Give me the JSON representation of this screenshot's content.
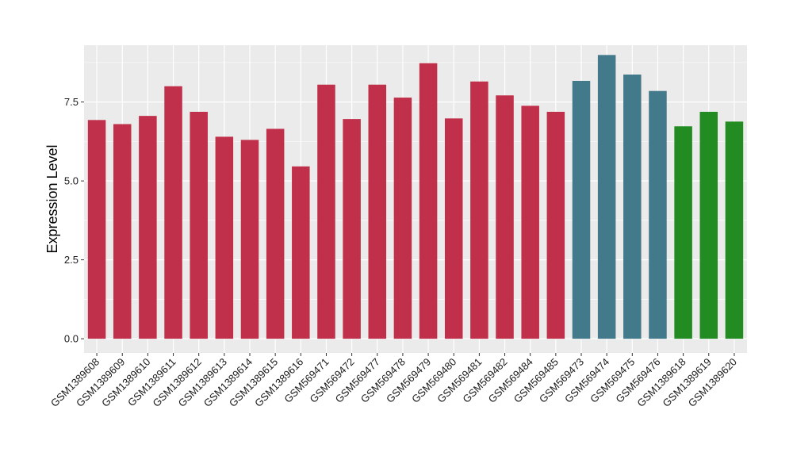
{
  "chart_data": {
    "type": "bar",
    "title": "",
    "xlabel": "",
    "ylabel": "Expression Level",
    "ylim": [
      -0.45,
      9.3
    ],
    "y_ticks": [
      0.0,
      2.5,
      5.0,
      7.5
    ],
    "y_tick_labels": [
      "0.0",
      "2.5",
      "5.0",
      "7.5"
    ],
    "grid": true,
    "legend": "none",
    "panel_background": "#ebebeb",
    "grid_color": "#ffffff",
    "categories": [
      "GSM1389608",
      "GSM1389609",
      "GSM1389610",
      "GSM1389611",
      "GSM1389612",
      "GSM1389613",
      "GSM1389614",
      "GSM1389615",
      "GSM1389616",
      "GSM569471",
      "GSM569472",
      "GSM569477",
      "GSM569478",
      "GSM569479",
      "GSM569480",
      "GSM569481",
      "GSM569482",
      "GSM569484",
      "GSM569485",
      "GSM569473",
      "GSM569474",
      "GSM569475",
      "GSM569476",
      "GSM1389618",
      "GSM1389619",
      "GSM1389620"
    ],
    "values": [
      6.93,
      6.8,
      7.06,
      8.0,
      7.19,
      6.4,
      6.3,
      6.65,
      5.46,
      8.05,
      6.96,
      8.05,
      7.64,
      8.73,
      6.98,
      8.15,
      7.71,
      7.38,
      7.19,
      8.17,
      8.99,
      8.37,
      7.85,
      6.73,
      7.19,
      6.88
    ],
    "bar_colors": [
      "#c0304a",
      "#c0304a",
      "#c0304a",
      "#c0304a",
      "#c0304a",
      "#c0304a",
      "#c0304a",
      "#c0304a",
      "#c0304a",
      "#c0304a",
      "#c0304a",
      "#c0304a",
      "#c0304a",
      "#c0304a",
      "#c0304a",
      "#c0304a",
      "#c0304a",
      "#c0304a",
      "#c0304a",
      "#437a8b",
      "#437a8b",
      "#437a8b",
      "#437a8b",
      "#228b22",
      "#228b22",
      "#228b22"
    ]
  }
}
